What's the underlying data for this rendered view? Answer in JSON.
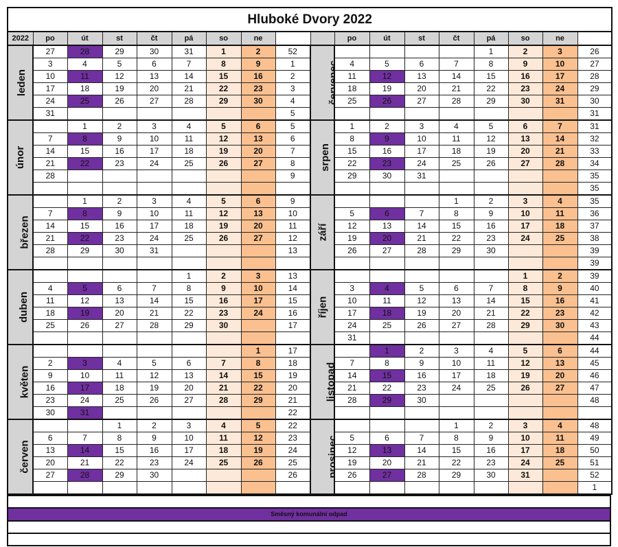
{
  "title": "Hluboké Dvory 2022",
  "year_label": "2022",
  "weekdays": [
    "po",
    "út",
    "st",
    "čt",
    "pá",
    "so",
    "ne"
  ],
  "colors": {
    "collection": "#7030a0",
    "saturday": "#fde9d9",
    "sunday": "#fac090",
    "month_label": "#d4d4d4"
  },
  "legend": [
    {
      "label": "Směsný komunální odpad",
      "color": "#7030a0"
    }
  ],
  "months": [
    {
      "name": "leden",
      "rows": [
        {
          "days": [
            "27",
            "28",
            "29",
            "30",
            "31",
            "1",
            "2"
          ],
          "week": "52",
          "collection": true
        },
        {
          "days": [
            "3",
            "4",
            "5",
            "6",
            "7",
            "8",
            "9"
          ],
          "week": "1",
          "collection": false
        },
        {
          "days": [
            "10",
            "11",
            "12",
            "13",
            "14",
            "15",
            "16"
          ],
          "week": "2",
          "collection": true
        },
        {
          "days": [
            "17",
            "18",
            "19",
            "20",
            "21",
            "22",
            "23"
          ],
          "week": "3",
          "collection": false
        },
        {
          "days": [
            "24",
            "25",
            "26",
            "27",
            "28",
            "29",
            "30"
          ],
          "week": "4",
          "collection": true
        },
        {
          "days": [
            "31",
            "",
            "",
            "",
            "",
            "",
            ""
          ],
          "week": "5",
          "collection": false
        }
      ]
    },
    {
      "name": "únor",
      "rows": [
        {
          "days": [
            "",
            "1",
            "2",
            "3",
            "4",
            "5",
            "6"
          ],
          "week": "5",
          "collection": false
        },
        {
          "days": [
            "7",
            "8",
            "9",
            "10",
            "11",
            "12",
            "13"
          ],
          "week": "6",
          "collection": true
        },
        {
          "days": [
            "14",
            "15",
            "16",
            "17",
            "18",
            "19",
            "20"
          ],
          "week": "7",
          "collection": false
        },
        {
          "days": [
            "21",
            "22",
            "23",
            "24",
            "25",
            "26",
            "27"
          ],
          "week": "8",
          "collection": true
        },
        {
          "days": [
            "28",
            "",
            "",
            "",
            "",
            "",
            ""
          ],
          "week": "9",
          "collection": false
        },
        {
          "days": [
            "",
            "",
            "",
            "",
            "",
            "",
            ""
          ],
          "week": "",
          "collection": false
        }
      ]
    },
    {
      "name": "březen",
      "rows": [
        {
          "days": [
            "",
            "1",
            "2",
            "3",
            "4",
            "5",
            "6"
          ],
          "week": "9",
          "collection": false
        },
        {
          "days": [
            "7",
            "8",
            "9",
            "10",
            "11",
            "12",
            "13"
          ],
          "week": "10",
          "collection": true
        },
        {
          "days": [
            "14",
            "15",
            "16",
            "17",
            "18",
            "19",
            "20"
          ],
          "week": "11",
          "collection": false
        },
        {
          "days": [
            "21",
            "22",
            "23",
            "24",
            "25",
            "26",
            "27"
          ],
          "week": "12",
          "collection": true
        },
        {
          "days": [
            "28",
            "29",
            "30",
            "31",
            "",
            "",
            ""
          ],
          "week": "13",
          "collection": false
        },
        {
          "days": [
            "",
            "",
            "",
            "",
            "",
            "",
            ""
          ],
          "week": "",
          "collection": false
        }
      ]
    },
    {
      "name": "duben",
      "rows": [
        {
          "days": [
            "",
            "",
            "",
            "",
            "1",
            "2",
            "3"
          ],
          "week": "13",
          "collection": false
        },
        {
          "days": [
            "4",
            "5",
            "6",
            "7",
            "8",
            "9",
            "10"
          ],
          "week": "14",
          "collection": true
        },
        {
          "days": [
            "11",
            "12",
            "13",
            "14",
            "15",
            "16",
            "17"
          ],
          "week": "15",
          "collection": false
        },
        {
          "days": [
            "18",
            "19",
            "20",
            "21",
            "22",
            "23",
            "24"
          ],
          "week": "16",
          "collection": true
        },
        {
          "days": [
            "25",
            "26",
            "27",
            "28",
            "29",
            "30",
            ""
          ],
          "week": "17",
          "collection": false
        },
        {
          "days": [
            "",
            "",
            "",
            "",
            "",
            "",
            ""
          ],
          "week": "",
          "collection": false
        }
      ]
    },
    {
      "name": "květen",
      "rows": [
        {
          "days": [
            "",
            "",
            "",
            "",
            "",
            "",
            "1"
          ],
          "week": "17",
          "collection": false
        },
        {
          "days": [
            "2",
            "3",
            "4",
            "5",
            "6",
            "7",
            "8"
          ],
          "week": "18",
          "collection": true
        },
        {
          "days": [
            "9",
            "10",
            "11",
            "12",
            "13",
            "14",
            "15"
          ],
          "week": "19",
          "collection": false
        },
        {
          "days": [
            "16",
            "17",
            "18",
            "19",
            "20",
            "21",
            "22"
          ],
          "week": "20",
          "collection": true
        },
        {
          "days": [
            "23",
            "24",
            "25",
            "26",
            "27",
            "28",
            "29"
          ],
          "week": "21",
          "collection": false
        },
        {
          "days": [
            "30",
            "31",
            "",
            "",
            "",
            "",
            ""
          ],
          "week": "22",
          "collection": true
        }
      ]
    },
    {
      "name": "červen",
      "rows": [
        {
          "days": [
            "",
            "",
            "1",
            "2",
            "3",
            "4",
            "5"
          ],
          "week": "22",
          "collection": false
        },
        {
          "days": [
            "6",
            "7",
            "8",
            "9",
            "10",
            "11",
            "12"
          ],
          "week": "23",
          "collection": false
        },
        {
          "days": [
            "13",
            "14",
            "15",
            "16",
            "17",
            "18",
            "19"
          ],
          "week": "24",
          "collection": true
        },
        {
          "days": [
            "20",
            "21",
            "22",
            "23",
            "24",
            "25",
            "26"
          ],
          "week": "25",
          "collection": false
        },
        {
          "days": [
            "27",
            "28",
            "29",
            "30",
            "",
            "",
            ""
          ],
          "week": "26",
          "collection": true
        },
        {
          "days": [
            "",
            "",
            "",
            "",
            "",
            "",
            ""
          ],
          "week": "",
          "collection": false
        }
      ]
    },
    {
      "name": "červenec",
      "rows": [
        {
          "days": [
            "",
            "",
            "",
            "",
            "1",
            "2",
            "3"
          ],
          "week": "26",
          "collection": false
        },
        {
          "days": [
            "4",
            "5",
            "6",
            "7",
            "8",
            "9",
            "10"
          ],
          "week": "27",
          "collection": false
        },
        {
          "days": [
            "11",
            "12",
            "13",
            "14",
            "15",
            "16",
            "17"
          ],
          "week": "28",
          "collection": true
        },
        {
          "days": [
            "18",
            "19",
            "20",
            "21",
            "22",
            "23",
            "24"
          ],
          "week": "29",
          "collection": false
        },
        {
          "days": [
            "25",
            "26",
            "27",
            "28",
            "29",
            "30",
            "31"
          ],
          "week": "30",
          "collection": true
        },
        {
          "days": [
            "",
            "",
            "",
            "",
            "",
            "",
            ""
          ],
          "week": "31",
          "collection": false
        }
      ]
    },
    {
      "name": "srpen",
      "rows": [
        {
          "days": [
            "1",
            "2",
            "3",
            "4",
            "5",
            "6",
            "7"
          ],
          "week": "31",
          "collection": false
        },
        {
          "days": [
            "8",
            "9",
            "10",
            "11",
            "12",
            "13",
            "14"
          ],
          "week": "32",
          "collection": true
        },
        {
          "days": [
            "15",
            "16",
            "17",
            "18",
            "19",
            "20",
            "21"
          ],
          "week": "33",
          "collection": false
        },
        {
          "days": [
            "22",
            "23",
            "24",
            "25",
            "26",
            "27",
            "28"
          ],
          "week": "34",
          "collection": true
        },
        {
          "days": [
            "29",
            "30",
            "31",
            "",
            "",
            "",
            ""
          ],
          "week": "35",
          "collection": false
        },
        {
          "days": [
            "",
            "",
            "",
            "",
            "",
            "",
            ""
          ],
          "week": "35",
          "collection": false
        }
      ]
    },
    {
      "name": "září",
      "rows": [
        {
          "days": [
            "",
            "",
            "",
            "1",
            "2",
            "3",
            "4"
          ],
          "week": "35",
          "collection": false
        },
        {
          "days": [
            "5",
            "6",
            "7",
            "8",
            "9",
            "10",
            "11"
          ],
          "week": "36",
          "collection": true
        },
        {
          "days": [
            "12",
            "13",
            "14",
            "15",
            "16",
            "17",
            "18"
          ],
          "week": "37",
          "collection": false
        },
        {
          "days": [
            "19",
            "20",
            "21",
            "22",
            "23",
            "24",
            "25"
          ],
          "week": "38",
          "collection": true
        },
        {
          "days": [
            "26",
            "27",
            "28",
            "29",
            "30",
            "",
            ""
          ],
          "week": "39",
          "collection": false
        },
        {
          "days": [
            "",
            "",
            "",
            "",
            "",
            "",
            ""
          ],
          "week": "39",
          "collection": false
        }
      ]
    },
    {
      "name": "říjen",
      "rows": [
        {
          "days": [
            "",
            "",
            "",
            "",
            "",
            "1",
            "2"
          ],
          "week": "39",
          "collection": false
        },
        {
          "days": [
            "3",
            "4",
            "5",
            "6",
            "7",
            "8",
            "9"
          ],
          "week": "40",
          "collection": true
        },
        {
          "days": [
            "10",
            "11",
            "12",
            "13",
            "14",
            "15",
            "16"
          ],
          "week": "41",
          "collection": false
        },
        {
          "days": [
            "17",
            "18",
            "19",
            "20",
            "21",
            "22",
            "23"
          ],
          "week": "42",
          "collection": true
        },
        {
          "days": [
            "24",
            "25",
            "26",
            "27",
            "28",
            "29",
            "30"
          ],
          "week": "43",
          "collection": false
        },
        {
          "days": [
            "31",
            "",
            "",
            "",
            "",
            "",
            ""
          ],
          "week": "44",
          "collection": false
        }
      ]
    },
    {
      "name": "listopad",
      "rows": [
        {
          "days": [
            "",
            "1",
            "2",
            "3",
            "4",
            "5",
            "6"
          ],
          "week": "44",
          "collection": true
        },
        {
          "days": [
            "7",
            "8",
            "9",
            "10",
            "11",
            "12",
            "13"
          ],
          "week": "45",
          "collection": false
        },
        {
          "days": [
            "14",
            "15",
            "16",
            "17",
            "18",
            "19",
            "20"
          ],
          "week": "46",
          "collection": true
        },
        {
          "days": [
            "21",
            "22",
            "23",
            "24",
            "25",
            "26",
            "27"
          ],
          "week": "47",
          "collection": false
        },
        {
          "days": [
            "28",
            "29",
            "30",
            "",
            "",
            "",
            ""
          ],
          "week": "48",
          "collection": true
        },
        {
          "days": [
            "",
            "",
            "",
            "",
            "",
            "",
            ""
          ],
          "week": "",
          "collection": false
        }
      ]
    },
    {
      "name": "prosinec",
      "rows": [
        {
          "days": [
            "",
            "",
            "",
            "1",
            "2",
            "3",
            "4"
          ],
          "week": "48",
          "collection": false
        },
        {
          "days": [
            "5",
            "6",
            "7",
            "8",
            "9",
            "10",
            "11"
          ],
          "week": "49",
          "collection": false
        },
        {
          "days": [
            "12",
            "13",
            "14",
            "15",
            "16",
            "17",
            "18"
          ],
          "week": "50",
          "collection": true
        },
        {
          "days": [
            "19",
            "20",
            "21",
            "22",
            "23",
            "24",
            "25"
          ],
          "week": "51",
          "collection": false
        },
        {
          "days": [
            "26",
            "27",
            "28",
            "29",
            "30",
            "31",
            ""
          ],
          "week": "52",
          "collection": true
        },
        {
          "days": [
            "",
            "",
            "",
            "",
            "",
            "",
            ""
          ],
          "week": "1",
          "collection": false
        }
      ]
    }
  ]
}
